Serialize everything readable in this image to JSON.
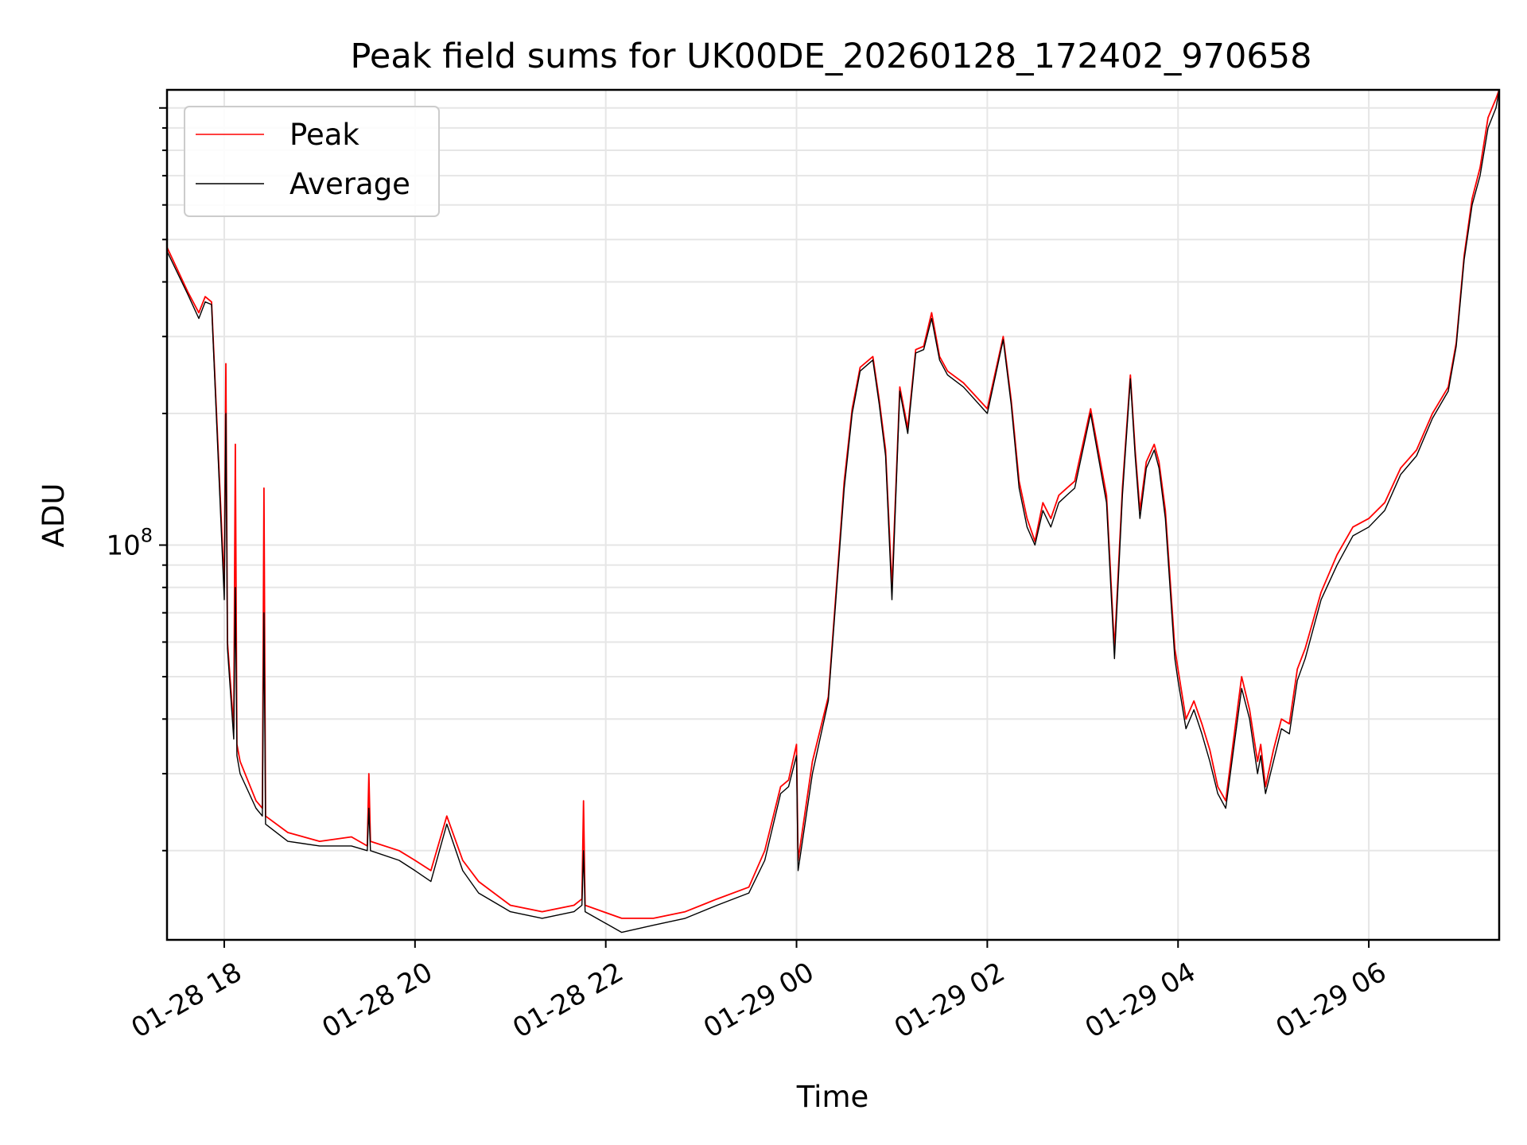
{
  "chart_data": {
    "type": "line",
    "title": "Peak field sums for UK00DE_20260128_172402_970658",
    "xlabel": "Time",
    "ylabel": "ADU",
    "y_scale": "log",
    "ylim": [
      12500000,
      1100000000
    ],
    "xlim": [
      "2026-01-28 17:24",
      "2026-01-29 07:22"
    ],
    "x_ticks": [
      "01-28 18",
      "01-28 20",
      "01-28 22",
      "01-29 00",
      "01-29 02",
      "01-29 04",
      "01-29 06"
    ],
    "y_ticks": [
      {
        "value": 100000000,
        "base": "10",
        "exponent": "8"
      }
    ],
    "grid": true,
    "legend_position": "upper left",
    "series": [
      {
        "name": "Peak",
        "color": "#ff0000",
        "x": [
          "2026-01-28 17:24",
          "2026-01-28 17:37",
          "2026-01-28 17:44",
          "2026-01-28 17:48",
          "2026-01-28 17:52",
          "2026-01-28 18:00",
          "2026-01-28 18:01",
          "2026-01-28 18:02",
          "2026-01-28 18:06",
          "2026-01-28 18:07",
          "2026-01-28 18:08",
          "2026-01-28 18:10",
          "2026-01-28 18:20",
          "2026-01-28 18:24",
          "2026-01-28 18:25",
          "2026-01-28 18:26",
          "2026-01-28 18:40",
          "2026-01-28 19:00",
          "2026-01-28 19:20",
          "2026-01-28 19:30",
          "2026-01-28 19:31",
          "2026-01-28 19:32",
          "2026-01-28 19:50",
          "2026-01-28 20:00",
          "2026-01-28 20:10",
          "2026-01-28 20:20",
          "2026-01-28 20:30",
          "2026-01-28 20:40",
          "2026-01-28 21:00",
          "2026-01-28 21:20",
          "2026-01-28 21:40",
          "2026-01-28 21:45",
          "2026-01-28 21:46",
          "2026-01-28 21:47",
          "2026-01-28 22:10",
          "2026-01-28 22:30",
          "2026-01-28 22:50",
          "2026-01-28 23:10",
          "2026-01-28 23:30",
          "2026-01-28 23:40",
          "2026-01-28 23:50",
          "2026-01-28 23:55",
          "2026-01-29 00:00",
          "2026-01-29 00:01",
          "2026-01-29 00:10",
          "2026-01-29 00:20",
          "2026-01-29 00:30",
          "2026-01-29 00:35",
          "2026-01-29 00:40",
          "2026-01-29 00:48",
          "2026-01-29 00:52",
          "2026-01-29 00:56",
          "2026-01-29 01:00",
          "2026-01-29 01:05",
          "2026-01-29 01:10",
          "2026-01-29 01:15",
          "2026-01-29 01:20",
          "2026-01-29 01:25",
          "2026-01-29 01:30",
          "2026-01-29 01:35",
          "2026-01-29 01:45",
          "2026-01-29 02:00",
          "2026-01-29 02:10",
          "2026-01-29 02:15",
          "2026-01-29 02:20",
          "2026-01-29 02:25",
          "2026-01-29 02:30",
          "2026-01-29 02:35",
          "2026-01-29 02:40",
          "2026-01-29 02:45",
          "2026-01-29 02:50",
          "2026-01-29 02:55",
          "2026-01-29 03:05",
          "2026-01-29 03:15",
          "2026-01-29 03:20",
          "2026-01-29 03:25",
          "2026-01-29 03:30",
          "2026-01-29 03:33",
          "2026-01-29 03:36",
          "2026-01-29 03:40",
          "2026-01-29 03:45",
          "2026-01-29 03:48",
          "2026-01-29 03:52",
          "2026-01-29 03:58",
          "2026-01-29 04:00",
          "2026-01-29 04:05",
          "2026-01-29 04:10",
          "2026-01-29 04:15",
          "2026-01-29 04:20",
          "2026-01-29 04:25",
          "2026-01-29 04:30",
          "2026-01-29 04:40",
          "2026-01-29 04:45",
          "2026-01-29 04:50",
          "2026-01-29 04:52",
          "2026-01-29 04:55",
          "2026-01-29 05:00",
          "2026-01-29 05:05",
          "2026-01-29 05:10",
          "2026-01-29 05:15",
          "2026-01-29 05:20",
          "2026-01-29 05:30",
          "2026-01-29 05:40",
          "2026-01-29 05:50",
          "2026-01-29 06:00",
          "2026-01-29 06:10",
          "2026-01-29 06:20",
          "2026-01-29 06:30",
          "2026-01-29 06:40",
          "2026-01-29 06:50",
          "2026-01-29 06:55",
          "2026-01-29 07:00",
          "2026-01-29 07:05",
          "2026-01-29 07:10",
          "2026-01-29 07:15",
          "2026-01-29 07:20",
          "2026-01-29 07:22"
        ],
        "values": [
          480000000,
          380000000,
          340000000,
          370000000,
          360000000,
          80000000,
          260000000,
          60000000,
          38000000,
          170000000,
          35000000,
          32000000,
          26000000,
          25000000,
          135000000,
          24000000,
          22000000,
          21000000,
          21500000,
          20500000,
          30000000,
          21000000,
          20000000,
          19000000,
          18000000,
          24000000,
          19000000,
          17000000,
          15000000,
          14500000,
          15000000,
          15500000,
          26000000,
          15000000,
          14000000,
          14000000,
          14500000,
          15500000,
          16500000,
          20000000,
          28000000,
          29000000,
          35000000,
          19000000,
          32000000,
          45000000,
          140000000,
          205000000,
          255000000,
          270000000,
          215000000,
          165000000,
          80000000,
          230000000,
          185000000,
          280000000,
          285000000,
          340000000,
          270000000,
          250000000,
          235000000,
          205000000,
          300000000,
          215000000,
          140000000,
          115000000,
          102000000,
          125000000,
          115000000,
          130000000,
          135000000,
          140000000,
          205000000,
          130000000,
          58000000,
          135000000,
          245000000,
          165000000,
          120000000,
          155000000,
          170000000,
          155000000,
          120000000,
          58000000,
          52000000,
          40000000,
          44000000,
          39000000,
          34000000,
          28000000,
          26000000,
          50000000,
          42000000,
          32000000,
          35000000,
          28000000,
          34000000,
          40000000,
          39000000,
          52000000,
          58000000,
          78000000,
          95000000,
          110000000,
          115000000,
          125000000,
          150000000,
          165000000,
          200000000,
          230000000,
          290000000,
          460000000,
          620000000,
          730000000,
          950000000,
          1050000000,
          1100000000
        ]
      },
      {
        "name": "Average",
        "color": "#000000",
        "x": [
          "2026-01-28 17:24",
          "2026-01-28 17:37",
          "2026-01-28 17:44",
          "2026-01-28 17:48",
          "2026-01-28 17:52",
          "2026-01-28 18:00",
          "2026-01-28 18:01",
          "2026-01-28 18:02",
          "2026-01-28 18:06",
          "2026-01-28 18:07",
          "2026-01-28 18:08",
          "2026-01-28 18:10",
          "2026-01-28 18:20",
          "2026-01-28 18:24",
          "2026-01-28 18:25",
          "2026-01-28 18:26",
          "2026-01-28 18:40",
          "2026-01-28 19:00",
          "2026-01-28 19:20",
          "2026-01-28 19:30",
          "2026-01-28 19:31",
          "2026-01-28 19:32",
          "2026-01-28 19:50",
          "2026-01-28 20:00",
          "2026-01-28 20:10",
          "2026-01-28 20:20",
          "2026-01-28 20:30",
          "2026-01-28 20:40",
          "2026-01-28 21:00",
          "2026-01-28 21:20",
          "2026-01-28 21:40",
          "2026-01-28 21:45",
          "2026-01-28 21:46",
          "2026-01-28 21:47",
          "2026-01-28 22:10",
          "2026-01-28 22:30",
          "2026-01-28 22:50",
          "2026-01-28 23:10",
          "2026-01-28 23:30",
          "2026-01-28 23:40",
          "2026-01-28 23:50",
          "2026-01-28 23:55",
          "2026-01-29 00:00",
          "2026-01-29 00:01",
          "2026-01-29 00:10",
          "2026-01-29 00:20",
          "2026-01-29 00:30",
          "2026-01-29 00:35",
          "2026-01-29 00:40",
          "2026-01-29 00:48",
          "2026-01-29 00:52",
          "2026-01-29 00:56",
          "2026-01-29 01:00",
          "2026-01-29 01:05",
          "2026-01-29 01:10",
          "2026-01-29 01:15",
          "2026-01-29 01:20",
          "2026-01-29 01:25",
          "2026-01-29 01:30",
          "2026-01-29 01:35",
          "2026-01-29 01:45",
          "2026-01-29 02:00",
          "2026-01-29 02:10",
          "2026-01-29 02:15",
          "2026-01-29 02:20",
          "2026-01-29 02:25",
          "2026-01-29 02:30",
          "2026-01-29 02:35",
          "2026-01-29 02:40",
          "2026-01-29 02:45",
          "2026-01-29 02:50",
          "2026-01-29 02:55",
          "2026-01-29 03:05",
          "2026-01-29 03:15",
          "2026-01-29 03:20",
          "2026-01-29 03:25",
          "2026-01-29 03:30",
          "2026-01-29 03:33",
          "2026-01-29 03:36",
          "2026-01-29 03:40",
          "2026-01-29 03:45",
          "2026-01-29 03:48",
          "2026-01-29 03:52",
          "2026-01-29 03:58",
          "2026-01-29 04:00",
          "2026-01-29 04:05",
          "2026-01-29 04:10",
          "2026-01-29 04:15",
          "2026-01-29 04:20",
          "2026-01-29 04:25",
          "2026-01-29 04:30",
          "2026-01-29 04:40",
          "2026-01-29 04:45",
          "2026-01-29 04:50",
          "2026-01-29 04:52",
          "2026-01-29 04:55",
          "2026-01-29 05:00",
          "2026-01-29 05:05",
          "2026-01-29 05:10",
          "2026-01-29 05:15",
          "2026-01-29 05:20",
          "2026-01-29 05:30",
          "2026-01-29 05:40",
          "2026-01-29 05:50",
          "2026-01-29 06:00",
          "2026-01-29 06:10",
          "2026-01-29 06:20",
          "2026-01-29 06:30",
          "2026-01-29 06:40",
          "2026-01-29 06:50",
          "2026-01-29 06:55",
          "2026-01-29 07:00",
          "2026-01-29 07:05",
          "2026-01-29 07:10",
          "2026-01-29 07:15",
          "2026-01-29 07:20",
          "2026-01-29 07:22"
        ],
        "values": [
          470000000,
          375000000,
          330000000,
          360000000,
          355000000,
          75000000,
          200000000,
          58000000,
          36000000,
          80000000,
          33000000,
          30000000,
          25000000,
          24000000,
          70000000,
          23000000,
          21000000,
          20500000,
          20500000,
          20000000,
          25000000,
          20000000,
          19000000,
          18000000,
          17000000,
          23000000,
          18000000,
          16000000,
          14500000,
          14000000,
          14500000,
          15000000,
          20000000,
          14500000,
          13000000,
          13500000,
          14000000,
          15000000,
          16000000,
          19000000,
          27000000,
          28000000,
          33000000,
          18000000,
          30000000,
          44000000,
          135000000,
          200000000,
          250000000,
          265000000,
          210000000,
          160000000,
          75000000,
          225000000,
          180000000,
          275000000,
          280000000,
          330000000,
          265000000,
          245000000,
          230000000,
          200000000,
          295000000,
          210000000,
          135000000,
          110000000,
          100000000,
          120000000,
          110000000,
          125000000,
          130000000,
          135000000,
          200000000,
          125000000,
          55000000,
          130000000,
          240000000,
          160000000,
          115000000,
          150000000,
          165000000,
          150000000,
          115000000,
          55000000,
          49000000,
          38000000,
          42000000,
          37000000,
          32000000,
          27000000,
          25000000,
          47000000,
          40000000,
          30000000,
          33000000,
          27000000,
          32000000,
          38000000,
          37000000,
          49000000,
          55000000,
          75000000,
          90000000,
          105000000,
          110000000,
          120000000,
          145000000,
          160000000,
          195000000,
          225000000,
          285000000,
          450000000,
          600000000,
          700000000,
          900000000,
          1000000000,
          1100000000
        ]
      }
    ]
  }
}
